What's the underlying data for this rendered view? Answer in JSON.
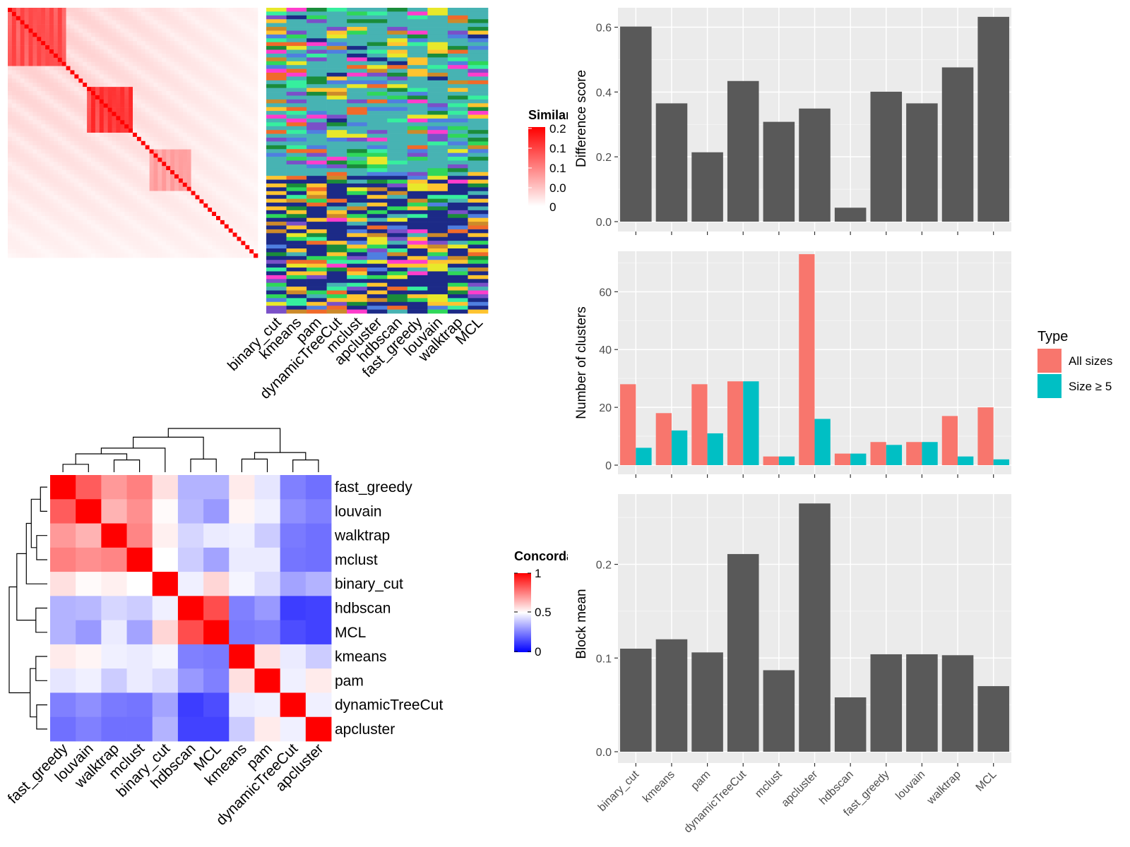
{
  "chart_data": [
    {
      "type": "heatmap",
      "panel": "similarity",
      "legend_title": "Similarity",
      "legend_ticks": [
        "0.2",
        "0.1",
        "0.1",
        "0.0",
        "0"
      ],
      "colors": {
        "low": "#ffffff",
        "high": "#ff0000"
      },
      "column_labels": [
        "binary_cut",
        "kmeans",
        "pam",
        "dynamicTreeCut",
        "mclust",
        "apcluster",
        "hdbscan",
        "fast_greedy",
        "louvain",
        "walktrap",
        "MCL"
      ]
    },
    {
      "type": "heatmap",
      "panel": "concordance",
      "legend_title": "Concordance",
      "legend_ticks": [
        "1",
        "0.5",
        "0"
      ],
      "colors": {
        "low": "#0000ff",
        "mid": "#ffffff",
        "high": "#ff0000"
      },
      "rows": [
        "fast_greedy",
        "louvain",
        "walktrap",
        "mclust",
        "binary_cut",
        "hdbscan",
        "MCL",
        "kmeans",
        "pam",
        "dynamicTreeCut",
        "apcluster"
      ],
      "columns": [
        "fast_greedy",
        "louvain",
        "walktrap",
        "mclust",
        "binary_cut",
        "hdbscan",
        "MCL",
        "kmeans",
        "pam",
        "dynamicTreeCut",
        "apcluster"
      ],
      "values": [
        [
          1.0,
          0.82,
          0.7,
          0.75,
          0.56,
          0.35,
          0.35,
          0.54,
          0.45,
          0.25,
          0.22
        ],
        [
          0.82,
          1.0,
          0.65,
          0.72,
          0.51,
          0.36,
          0.3,
          0.52,
          0.47,
          0.28,
          0.25
        ],
        [
          0.7,
          0.65,
          1.0,
          0.74,
          0.53,
          0.42,
          0.46,
          0.47,
          0.4,
          0.24,
          0.22
        ],
        [
          0.75,
          0.72,
          0.74,
          1.0,
          0.5,
          0.4,
          0.32,
          0.46,
          0.46,
          0.23,
          0.22
        ],
        [
          0.56,
          0.51,
          0.53,
          0.5,
          1.0,
          0.47,
          0.58,
          0.48,
          0.43,
          0.32,
          0.35
        ],
        [
          0.35,
          0.36,
          0.42,
          0.4,
          0.47,
          1.0,
          0.85,
          0.25,
          0.3,
          0.12,
          0.13
        ],
        [
          0.35,
          0.3,
          0.46,
          0.32,
          0.58,
          0.85,
          1.0,
          0.24,
          0.25,
          0.15,
          0.13
        ],
        [
          0.54,
          0.52,
          0.47,
          0.46,
          0.48,
          0.25,
          0.24,
          1.0,
          0.56,
          0.46,
          0.4
        ],
        [
          0.45,
          0.47,
          0.4,
          0.46,
          0.43,
          0.3,
          0.25,
          0.56,
          1.0,
          0.47,
          0.54
        ],
        [
          0.25,
          0.28,
          0.24,
          0.23,
          0.32,
          0.12,
          0.15,
          0.46,
          0.47,
          1.0,
          0.47
        ],
        [
          0.22,
          0.25,
          0.22,
          0.22,
          0.35,
          0.13,
          0.13,
          0.4,
          0.54,
          0.47,
          1.0
        ]
      ]
    },
    {
      "type": "bar",
      "panel": "difference",
      "ylabel": "Difference score",
      "categories": [
        "binary_cut",
        "kmeans",
        "pam",
        "dynamicTreeCut",
        "mclust",
        "apcluster",
        "hdbscan",
        "fast_greedy",
        "louvain",
        "walktrap",
        "MCL"
      ],
      "values": [
        0.602,
        0.365,
        0.214,
        0.434,
        0.308,
        0.349,
        0.043,
        0.401,
        0.365,
        0.476,
        0.632
      ],
      "ylim": [
        0,
        0.66
      ],
      "yticks": [
        "0.0",
        "0.2",
        "0.4",
        "0.6"
      ],
      "bar_color": "#595959"
    },
    {
      "type": "bar",
      "panel": "clusters",
      "ylabel": "Number of clusters",
      "categories": [
        "binary_cut",
        "kmeans",
        "pam",
        "dynamicTreeCut",
        "mclust",
        "apcluster",
        "hdbscan",
        "fast_greedy",
        "louvain",
        "walktrap",
        "MCL"
      ],
      "series": [
        {
          "name": "All sizes",
          "color": "#f8766d",
          "values": [
            28,
            18,
            28,
            29,
            3,
            73,
            4,
            8,
            8,
            17,
            20
          ]
        },
        {
          "name": "Size ≥ 5",
          "color": "#00bfc4",
          "values": [
            6,
            12,
            11,
            29,
            3,
            16,
            4,
            7,
            8,
            3,
            2
          ]
        }
      ],
      "ylim": [
        0,
        74
      ],
      "yticks": [
        "0",
        "20",
        "40",
        "60"
      ],
      "legend_title": "Type",
      "legend_position": "right"
    },
    {
      "type": "bar",
      "panel": "block_mean",
      "ylabel": "Block mean",
      "categories": [
        "binary_cut",
        "kmeans",
        "pam",
        "dynamicTreeCut",
        "mclust",
        "apcluster",
        "hdbscan",
        "fast_greedy",
        "louvain",
        "walktrap",
        "MCL"
      ],
      "values": [
        0.11,
        0.12,
        0.106,
        0.211,
        0.087,
        0.265,
        0.058,
        0.104,
        0.104,
        0.103,
        0.07
      ],
      "ylim": [
        0,
        0.275
      ],
      "yticks": [
        "0.0",
        "0.1",
        "0.2"
      ],
      "bar_color": "#595959"
    }
  ]
}
